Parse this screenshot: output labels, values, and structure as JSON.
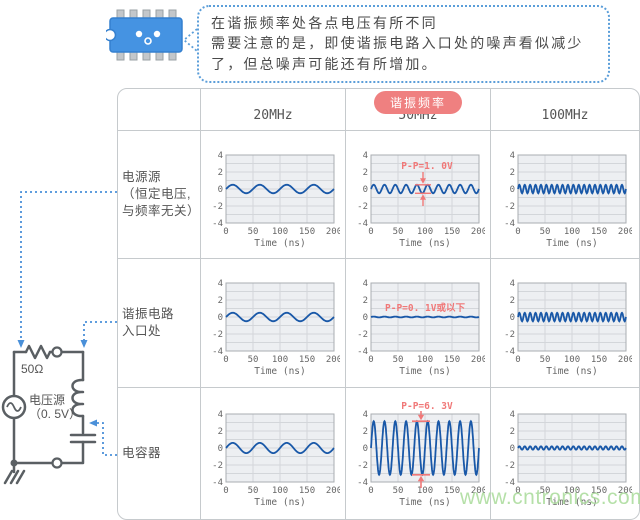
{
  "bubble": {
    "lines": [
      "在谐振频率处各点电压有所不同",
      "需要注意的是，即使谐振电路入口处的噪声看似减少",
      "了，但总噪声可能还有所增加。"
    ]
  },
  "header": {
    "badge": "谐振频率",
    "columns": [
      "20MHz",
      "50MHz",
      "100MHz"
    ]
  },
  "rows": [
    {
      "lines": [
        "电源源",
        "（恒定电压,",
        "与频率无关）"
      ]
    },
    {
      "lines": [
        "谐振电路",
        "入口处"
      ]
    },
    {
      "lines": [
        "电容器"
      ]
    }
  ],
  "circuit": {
    "resistor": "50Ω",
    "source_name": "电压源",
    "source_value": "（0. 5V）"
  },
  "watermark": "www.cntronics.com",
  "colors": {
    "wave": "#1958a8",
    "annotation": "#f07878",
    "badge_bg": "#ef8080",
    "plot_bg": "#edeff2",
    "plot_border": "#a9adb2",
    "grid": "#d3d6da",
    "axis_text": "#666666",
    "connector": "#4a90d9",
    "circuit_line": "#5a5f63",
    "chip_body": "#4593e2",
    "bubble_border": "#5b9ed9",
    "watermark": "#aedd9f"
  },
  "chart_data": {
    "type": "line",
    "xlabel": "Time (ns)",
    "x_range": [
      0,
      200
    ],
    "xticks": [
      0,
      50,
      100,
      150,
      200
    ],
    "ylim": [
      -4,
      4
    ],
    "yticks": [
      4,
      2,
      0,
      -2,
      -4
    ],
    "grid": true,
    "y_grid_step": 1,
    "x_grid_step_ns": 50,
    "charts": [
      {
        "row": "电源源",
        "freq": "20MHz",
        "cycles": 4,
        "amplitude_v": 0.5
      },
      {
        "row": "电源源",
        "freq": "50MHz",
        "cycles": 10,
        "amplitude_v": 0.5,
        "annotation": {
          "text": "P-P=1. 0V",
          "style": "arrows-inside",
          "y": 0.5
        }
      },
      {
        "row": "电源源",
        "freq": "100MHz",
        "cycles": 20,
        "amplitude_v": 0.5
      },
      {
        "row": "谐振电路入口处",
        "freq": "20MHz",
        "cycles": 4,
        "amplitude_v": 0.5
      },
      {
        "row": "谐振电路入口处",
        "freq": "50MHz",
        "cycles": 10,
        "amplitude_v": 0.05,
        "annotation": {
          "text": "P-P=0. 1V或以下",
          "style": "text-only",
          "y": 1.1
        }
      },
      {
        "row": "谐振电路入口处",
        "freq": "100MHz",
        "cycles": 20,
        "amplitude_v": 0.5
      },
      {
        "row": "电容器",
        "freq": "20MHz",
        "cycles": 4,
        "amplitude_v": 0.6
      },
      {
        "row": "电容器",
        "freq": "50MHz",
        "cycles": 10,
        "amplitude_v": 3.15,
        "annotation": {
          "text": "P-P=6. 3V",
          "style": "arrows-outside",
          "y": 3.15
        }
      },
      {
        "row": "电容器",
        "freq": "100MHz",
        "cycles": 20,
        "amplitude_v": 0.2
      }
    ]
  }
}
